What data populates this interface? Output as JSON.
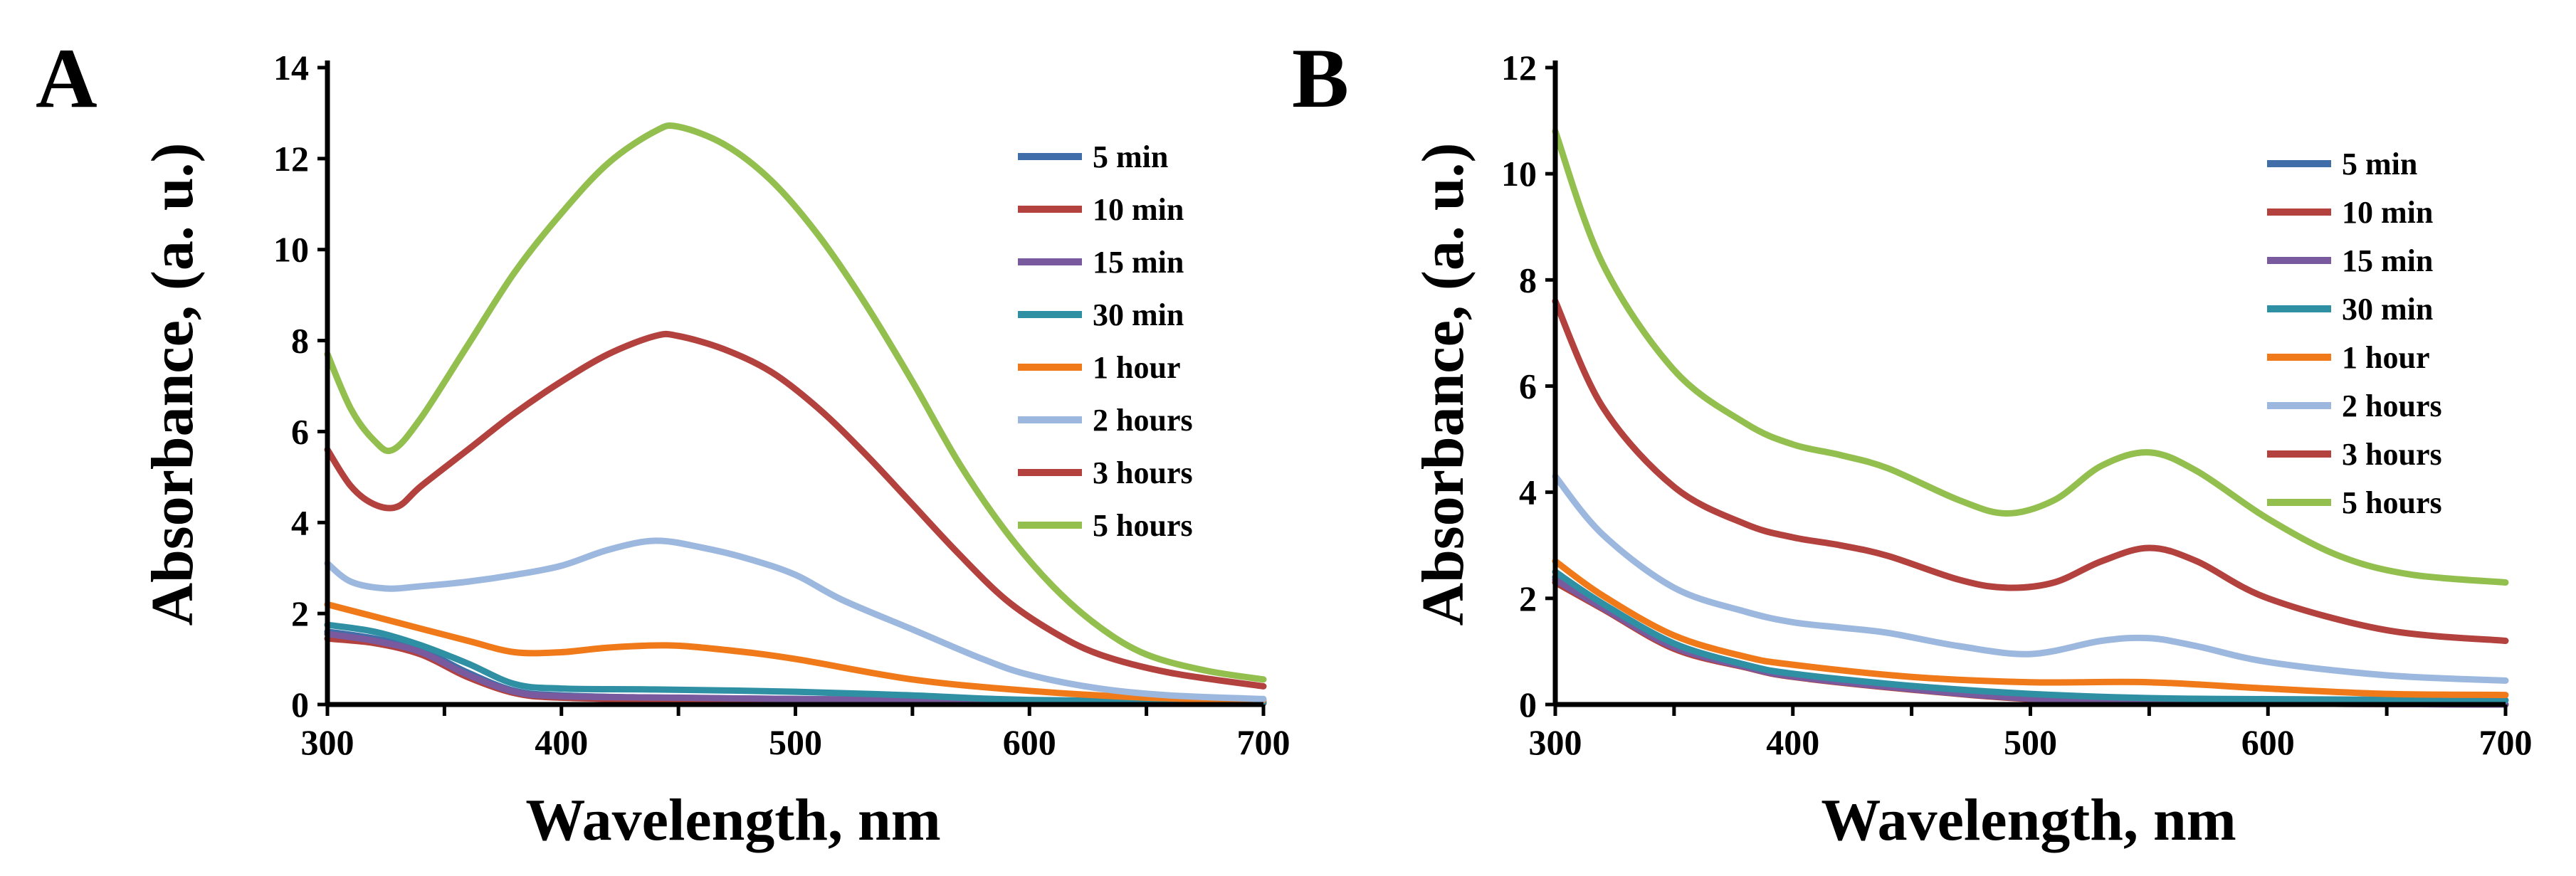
{
  "figure": {
    "panels": [
      "A",
      "B"
    ]
  },
  "chart_data": [
    {
      "panel": "A",
      "type": "line",
      "xlabel": "Wavelength, nm",
      "ylabel": "Absorbance, (a. u.)",
      "xlim": [
        300,
        700
      ],
      "ylim": [
        0,
        14
      ],
      "xticks": [
        300,
        400,
        500,
        600,
        700
      ],
      "yticks": [
        0,
        2,
        4,
        6,
        8,
        10,
        12,
        14
      ],
      "grid": false,
      "legend_position": "top-right",
      "series": [
        {
          "name": "5 min",
          "color": "#3f6ea8",
          "points": [
            [
              300,
              1.6
            ],
            [
              320,
              1.45
            ],
            [
              340,
              1.2
            ],
            [
              360,
              0.7
            ],
            [
              380,
              0.3
            ],
            [
              400,
              0.2
            ],
            [
              440,
              0.15
            ],
            [
              500,
              0.12
            ],
            [
              600,
              0.08
            ],
            [
              700,
              0.05
            ]
          ]
        },
        {
          "name": "10 min",
          "color": "#b3413d",
          "points": [
            [
              300,
              1.45
            ],
            [
              320,
              1.35
            ],
            [
              340,
              1.1
            ],
            [
              360,
              0.6
            ],
            [
              380,
              0.25
            ],
            [
              400,
              0.15
            ],
            [
              450,
              0.1
            ],
            [
              500,
              0.08
            ],
            [
              600,
              0.05
            ],
            [
              700,
              0.03
            ]
          ]
        },
        {
          "name": "15 min",
          "color": "#7a5a9e",
          "points": [
            [
              300,
              1.55
            ],
            [
              320,
              1.4
            ],
            [
              340,
              1.15
            ],
            [
              360,
              0.65
            ],
            [
              380,
              0.28
            ],
            [
              400,
              0.18
            ],
            [
              450,
              0.15
            ],
            [
              500,
              0.12
            ],
            [
              600,
              0.08
            ],
            [
              700,
              0.05
            ]
          ]
        },
        {
          "name": "30 min",
          "color": "#2f8fa3",
          "points": [
            [
              300,
              1.75
            ],
            [
              320,
              1.6
            ],
            [
              340,
              1.3
            ],
            [
              360,
              0.9
            ],
            [
              380,
              0.45
            ],
            [
              400,
              0.35
            ],
            [
              440,
              0.33
            ],
            [
              500,
              0.28
            ],
            [
              550,
              0.2
            ],
            [
              600,
              0.1
            ],
            [
              700,
              0.05
            ]
          ]
        },
        {
          "name": "1 hour",
          "color": "#f07a1a",
          "points": [
            [
              300,
              2.2
            ],
            [
              330,
              1.8
            ],
            [
              360,
              1.4
            ],
            [
              380,
              1.15
            ],
            [
              400,
              1.15
            ],
            [
              420,
              1.25
            ],
            [
              445,
              1.3
            ],
            [
              470,
              1.2
            ],
            [
              500,
              1.0
            ],
            [
              550,
              0.55
            ],
            [
              600,
              0.3
            ],
            [
              650,
              0.15
            ],
            [
              700,
              0.1
            ]
          ]
        },
        {
          "name": "2 hours",
          "color": "#9db8de",
          "points": [
            [
              300,
              3.1
            ],
            [
              310,
              2.7
            ],
            [
              325,
              2.55
            ],
            [
              340,
              2.6
            ],
            [
              360,
              2.7
            ],
            [
              380,
              2.85
            ],
            [
              400,
              3.05
            ],
            [
              420,
              3.4
            ],
            [
              440,
              3.6
            ],
            [
              460,
              3.45
            ],
            [
              480,
              3.2
            ],
            [
              500,
              2.85
            ],
            [
              520,
              2.3
            ],
            [
              550,
              1.65
            ],
            [
              580,
              1.0
            ],
            [
              600,
              0.65
            ],
            [
              630,
              0.35
            ],
            [
              660,
              0.2
            ],
            [
              700,
              0.12
            ]
          ]
        },
        {
          "name": "3 hours",
          "color": "#b3413d",
          "points": [
            [
              300,
              5.6
            ],
            [
              310,
              4.8
            ],
            [
              320,
              4.4
            ],
            [
              330,
              4.35
            ],
            [
              340,
              4.8
            ],
            [
              360,
              5.6
            ],
            [
              380,
              6.4
            ],
            [
              400,
              7.1
            ],
            [
              420,
              7.7
            ],
            [
              440,
              8.1
            ],
            [
              450,
              8.1
            ],
            [
              470,
              7.8
            ],
            [
              490,
              7.3
            ],
            [
              510,
              6.5
            ],
            [
              530,
              5.5
            ],
            [
              550,
              4.4
            ],
            [
              570,
              3.3
            ],
            [
              590,
              2.3
            ],
            [
              610,
              1.6
            ],
            [
              630,
              1.1
            ],
            [
              660,
              0.7
            ],
            [
              700,
              0.4
            ]
          ]
        },
        {
          "name": "5 hours",
          "color": "#93bf4f",
          "points": [
            [
              300,
              7.7
            ],
            [
              310,
              6.5
            ],
            [
              320,
              5.8
            ],
            [
              328,
              5.6
            ],
            [
              340,
              6.3
            ],
            [
              360,
              7.9
            ],
            [
              380,
              9.5
            ],
            [
              400,
              10.8
            ],
            [
              420,
              11.9
            ],
            [
              440,
              12.6
            ],
            [
              450,
              12.7
            ],
            [
              470,
              12.3
            ],
            [
              490,
              11.5
            ],
            [
              510,
              10.3
            ],
            [
              530,
              8.8
            ],
            [
              550,
              7.1
            ],
            [
              570,
              5.3
            ],
            [
              590,
              3.8
            ],
            [
              610,
              2.6
            ],
            [
              630,
              1.7
            ],
            [
              650,
              1.1
            ],
            [
              675,
              0.75
            ],
            [
              700,
              0.55
            ]
          ]
        }
      ]
    },
    {
      "panel": "B",
      "type": "line",
      "xlabel": "Wavelength, nm",
      "ylabel": "Absorbance, (a. u.)",
      "xlim": [
        300,
        700
      ],
      "ylim": [
        0,
        12
      ],
      "xticks": [
        300,
        400,
        500,
        600,
        700
      ],
      "yticks": [
        0,
        2,
        4,
        6,
        8,
        10,
        12
      ],
      "grid": false,
      "legend_position": "top-right",
      "series": [
        {
          "name": "5 min",
          "color": "#3f6ea8",
          "points": [
            [
              300,
              2.4
            ],
            [
              320,
              1.85
            ],
            [
              350,
              1.1
            ],
            [
              380,
              0.72
            ],
            [
              400,
              0.55
            ],
            [
              450,
              0.3
            ],
            [
              500,
              0.12
            ],
            [
              550,
              0.05
            ],
            [
              600,
              0.02
            ],
            [
              700,
              0.0
            ]
          ]
        },
        {
          "name": "10 min",
          "color": "#b3413d",
          "points": [
            [
              300,
              2.3
            ],
            [
              320,
              1.8
            ],
            [
              350,
              1.05
            ],
            [
              380,
              0.7
            ],
            [
              400,
              0.52
            ],
            [
              450,
              0.28
            ],
            [
              500,
              0.1
            ],
            [
              550,
              0.04
            ],
            [
              600,
              0.02
            ],
            [
              700,
              0.0
            ]
          ]
        },
        {
          "name": "15 min",
          "color": "#7a5a9e",
          "points": [
            [
              300,
              2.35
            ],
            [
              320,
              1.82
            ],
            [
              350,
              1.08
            ],
            [
              380,
              0.71
            ],
            [
              400,
              0.53
            ],
            [
              450,
              0.29
            ],
            [
              500,
              0.11
            ],
            [
              550,
              0.05
            ],
            [
              600,
              0.02
            ],
            [
              700,
              0.0
            ]
          ]
        },
        {
          "name": "30 min",
          "color": "#2f8fa3",
          "points": [
            [
              300,
              2.5
            ],
            [
              320,
              1.9
            ],
            [
              350,
              1.15
            ],
            [
              380,
              0.75
            ],
            [
              400,
              0.58
            ],
            [
              450,
              0.35
            ],
            [
              500,
              0.2
            ],
            [
              550,
              0.12
            ],
            [
              600,
              0.1
            ],
            [
              700,
              0.08
            ]
          ]
        },
        {
          "name": "1 hour",
          "color": "#f07a1a",
          "points": [
            [
              300,
              2.7
            ],
            [
              320,
              2.05
            ],
            [
              350,
              1.3
            ],
            [
              380,
              0.9
            ],
            [
              400,
              0.75
            ],
            [
              450,
              0.52
            ],
            [
              500,
              0.42
            ],
            [
              550,
              0.42
            ],
            [
              600,
              0.3
            ],
            [
              650,
              0.2
            ],
            [
              700,
              0.18
            ]
          ]
        },
        {
          "name": "2 hours",
          "color": "#9db8de",
          "points": [
            [
              300,
              4.3
            ],
            [
              320,
              3.2
            ],
            [
              350,
              2.2
            ],
            [
              380,
              1.75
            ],
            [
              400,
              1.55
            ],
            [
              420,
              1.45
            ],
            [
              440,
              1.35
            ],
            [
              470,
              1.1
            ],
            [
              500,
              0.95
            ],
            [
              530,
              1.2
            ],
            [
              550,
              1.25
            ],
            [
              570,
              1.1
            ],
            [
              600,
              0.8
            ],
            [
              650,
              0.55
            ],
            [
              700,
              0.45
            ]
          ]
        },
        {
          "name": "3 hours",
          "color": "#b3413d",
          "points": [
            [
              300,
              7.6
            ],
            [
              320,
              5.6
            ],
            [
              350,
              4.1
            ],
            [
              380,
              3.4
            ],
            [
              400,
              3.15
            ],
            [
              420,
              3.0
            ],
            [
              440,
              2.8
            ],
            [
              470,
              2.35
            ],
            [
              490,
              2.2
            ],
            [
              510,
              2.3
            ],
            [
              530,
              2.7
            ],
            [
              550,
              2.95
            ],
            [
              570,
              2.7
            ],
            [
              600,
              2.0
            ],
            [
              650,
              1.4
            ],
            [
              700,
              1.2
            ]
          ]
        },
        {
          "name": "5 hours",
          "color": "#93bf4f",
          "points": [
            [
              300,
              10.8
            ],
            [
              320,
              8.3
            ],
            [
              350,
              6.3
            ],
            [
              380,
              5.3
            ],
            [
              400,
              4.9
            ],
            [
              420,
              4.7
            ],
            [
              440,
              4.45
            ],
            [
              470,
              3.85
            ],
            [
              490,
              3.6
            ],
            [
              510,
              3.85
            ],
            [
              530,
              4.5
            ],
            [
              550,
              4.75
            ],
            [
              570,
              4.4
            ],
            [
              600,
              3.5
            ],
            [
              630,
              2.8
            ],
            [
              660,
              2.45
            ],
            [
              700,
              2.3
            ]
          ]
        }
      ]
    }
  ]
}
